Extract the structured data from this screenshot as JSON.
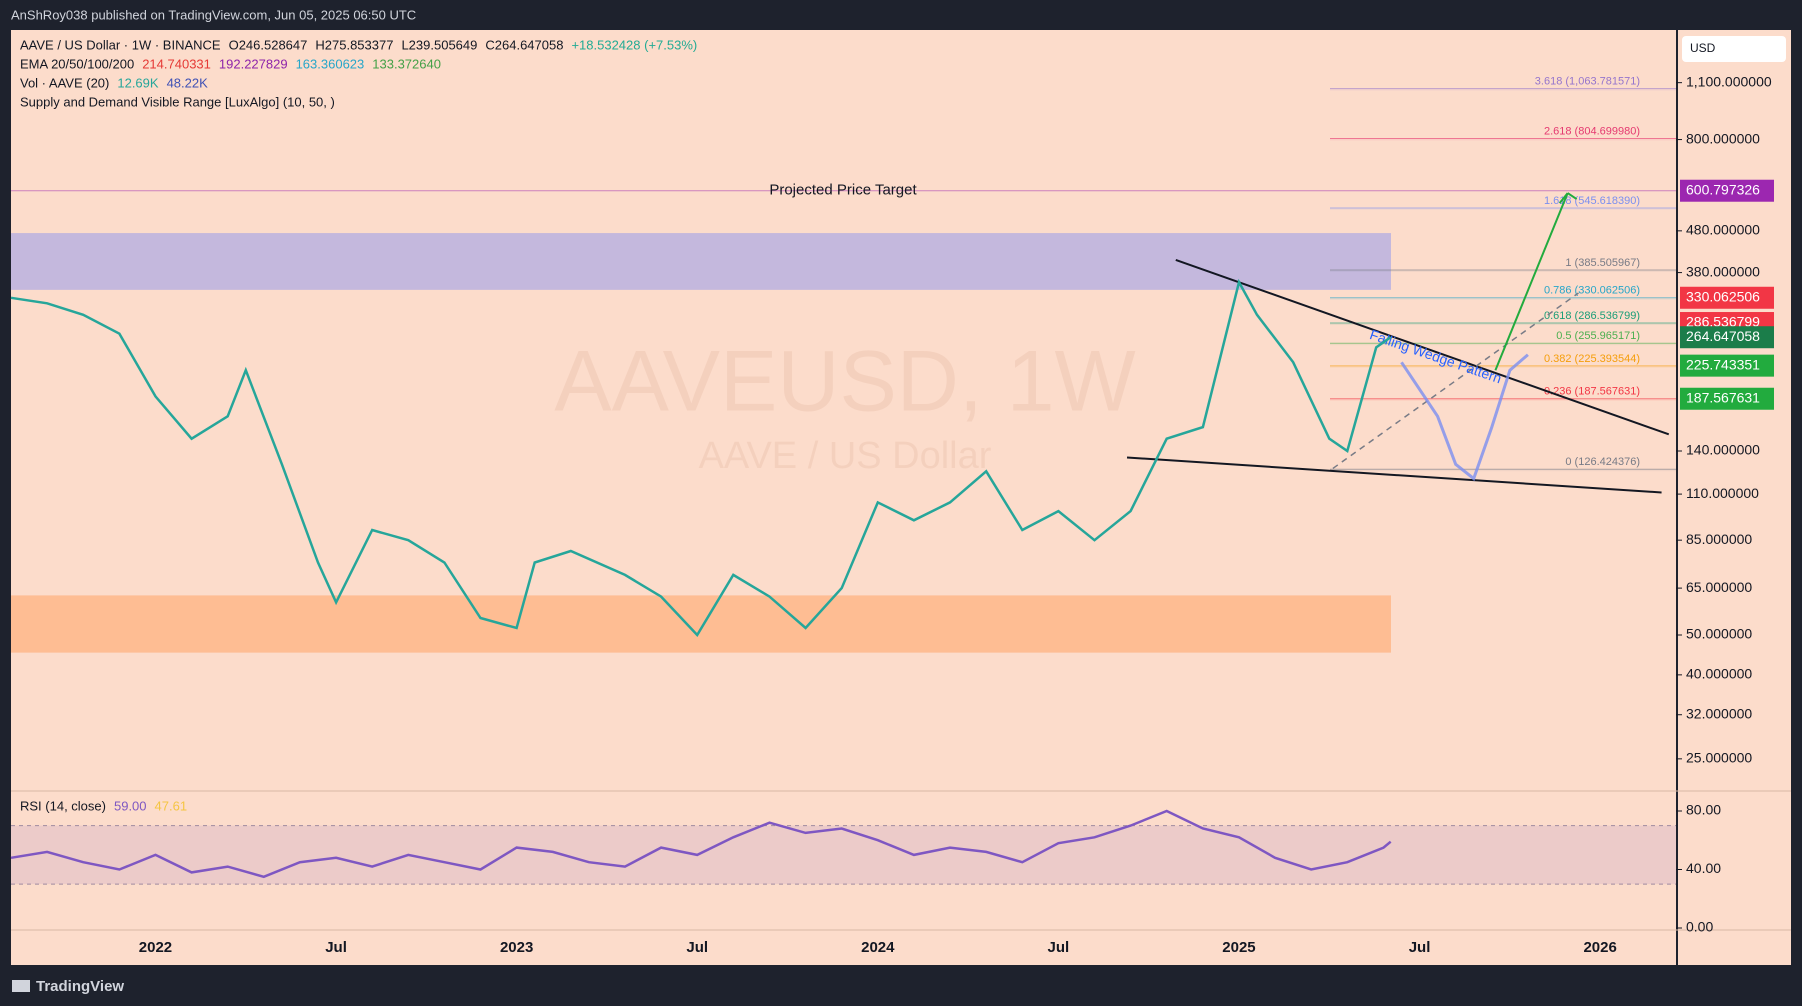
{
  "header": {
    "publisher": "AnShRoy038 published on TradingView.com, Jun 05, 2025 06:50 UTC",
    "currency": "USD",
    "brand": "TradingView"
  },
  "legend": {
    "symbol": "AAVE / US Dollar · 1W · BINANCE",
    "ohlc": [
      "O246.528647",
      "H275.853377",
      "L239.505649",
      "C264.647058",
      "+18.532428 (+7.53%)"
    ],
    "ema_label": "EMA 20/50/100/200",
    "ema_values": [
      {
        "text": "214.740331",
        "color": "#e53935"
      },
      {
        "text": "192.227829",
        "color": "#8e24aa"
      },
      {
        "text": "163.360623",
        "color": "#26a6c9"
      },
      {
        "text": "133.372640",
        "color": "#43a047"
      }
    ],
    "vol_label": "Vol · AAVE (20)",
    "vol_values": [
      {
        "text": "12.69K",
        "color": "#26a69a"
      },
      {
        "text": "48.22K",
        "color": "#3f51b5"
      }
    ],
    "indicator": "Supply and Demand Visible Range [LuxAlgo] (10, 50, )"
  },
  "chart_data": [
    {
      "type": "line",
      "title": "AAVEUSD, 1W",
      "subtitle": "AAVE / US Dollar",
      "log_scale": true,
      "x": [
        2021.6,
        2021.7,
        2021.8,
        2021.9,
        2022.0,
        2022.1,
        2022.2,
        2022.25,
        2022.35,
        2022.45,
        2022.5,
        2022.6,
        2022.7,
        2022.8,
        2022.9,
        2023.0,
        2023.05,
        2023.15,
        2023.3,
        2023.4,
        2023.5,
        2023.6,
        2023.7,
        2023.8,
        2023.9,
        2024.0,
        2024.1,
        2024.2,
        2024.3,
        2024.4,
        2024.5,
        2024.6,
        2024.7,
        2024.8,
        2024.9,
        2025.0,
        2025.05,
        2025.15,
        2025.25,
        2025.3,
        2025.38,
        2025.42
      ],
      "series": [
        {
          "color": "#26a69a",
          "values": [
            330,
            320,
            300,
            270,
            190,
            150,
            170,
            220,
            130,
            75,
            60,
            90,
            85,
            75,
            55,
            52,
            75,
            80,
            70,
            62,
            50,
            70,
            62,
            52,
            65,
            105,
            95,
            105,
            125,
            90,
            100,
            85,
            100,
            150,
            160,
            360,
            300,
            230,
            150,
            140,
            250,
            264.647058
          ]
        }
      ],
      "projection": {
        "color": "#7b8ff0",
        "x": [
          2025.45,
          2025.55,
          2025.6,
          2025.65,
          2025.7,
          2025.75,
          2025.8
        ],
        "values": [
          230,
          170,
          130,
          120,
          160,
          220,
          240
        ]
      },
      "xlim": [
        2021.6,
        2026.21
      ],
      "xticks": [
        {
          "value": 2022,
          "label": "2022"
        },
        {
          "value": 2022.5,
          "label": "Jul"
        },
        {
          "value": 2023,
          "label": "2023"
        },
        {
          "value": 2023.5,
          "label": "Jul"
        },
        {
          "value": 2024,
          "label": "2024"
        },
        {
          "value": 2024.5,
          "label": "Jul"
        },
        {
          "value": 2025,
          "label": "2025"
        },
        {
          "value": 2025.5,
          "label": "Jul"
        },
        {
          "value": 2026,
          "label": "2026"
        }
      ],
      "ylim": [
        21,
        1477
      ],
      "yticks": [
        {
          "value": 1100,
          "label": "1,100.000000"
        },
        {
          "value": 800,
          "label": "800.000000"
        },
        {
          "value": 480,
          "label": "480.000000"
        },
        {
          "value": 380,
          "label": "380.000000"
        },
        {
          "value": 140,
          "label": "140.000000"
        },
        {
          "value": 110,
          "label": "110.000000"
        },
        {
          "value": 85,
          "label": "85.000000"
        },
        {
          "value": 65,
          "label": "65.000000"
        },
        {
          "value": 50,
          "label": "50.000000"
        },
        {
          "value": 40,
          "label": "40.000000"
        },
        {
          "value": 32,
          "label": "32.000000"
        },
        {
          "value": 25,
          "label": "25.000000"
        }
      ],
      "price_badges": [
        {
          "value": 600.797326,
          "label": "600.797326",
          "color": "#9c27b0"
        },
        {
          "value": 330.062506,
          "label": "330.062506",
          "color": "#f23645"
        },
        {
          "value": 286.536799,
          "label": "286.536799",
          "color": "#f23645"
        },
        {
          "value": 264.647058,
          "label": "264.647058",
          "color": "#1b7d4a"
        },
        {
          "value": 225.743351,
          "label": "225.743351",
          "color": "#22ab3e"
        },
        {
          "value": 187.567631,
          "label": "187.567631",
          "color": "#22ab3e"
        }
      ],
      "fib_levels": [
        {
          "value": 1063.781571,
          "label": "3.618 (1,063.781571)",
          "color": "#9575cd"
        },
        {
          "value": 804.69998,
          "label": "2.618 (804.699980)",
          "color": "#e53970"
        },
        {
          "value": 545.61839,
          "label": "1.618 (545.618390)",
          "color": "#7b8ff0"
        },
        {
          "value": 385.505967,
          "label": "1 (385.505967)",
          "color": "#787b86"
        },
        {
          "value": 330.062506,
          "label": "0.786 (330.062506)",
          "color": "#26a6c9"
        },
        {
          "value": 286.536799,
          "label": "0.618 (286.536799)",
          "color": "#1b9e77"
        },
        {
          "value": 255.965171,
          "label": "0.5 (255.965171)",
          "color": "#4caf50"
        },
        {
          "value": 225.393544,
          "label": "0.382 (225.393544)",
          "color": "#f59e0b"
        },
        {
          "value": 187.567631,
          "label": "0.236 (187.567631)",
          "color": "#f23645"
        },
        {
          "value": 126.424376,
          "label": "0 (126.424376)",
          "color": "#787b86"
        }
      ],
      "zones": [
        {
          "range": [
            345,
            474
          ],
          "color": "#8c94f0"
        },
        {
          "range": [
            45.3,
            62.4
          ],
          "color": "#ff9d5c"
        }
      ],
      "wedge": [
        [
          [
            2024.825,
            408
          ],
          [
            2026.19,
            153.7
          ]
        ],
        [
          [
            2024.69,
            135
          ],
          [
            2026.17,
            111
          ]
        ]
      ],
      "dashed_path": [
        [
          2025.26,
          127
        ],
        [
          2025.94,
          339
        ]
      ],
      "arrow": [
        [
          2025.71,
          220
        ],
        [
          2025.91,
          593
        ]
      ],
      "annotations": [
        {
          "text": "Projected Price Target",
          "price": 600.797326
        },
        {
          "text": "Falling Wedge Pattern"
        }
      ]
    },
    {
      "type": "line",
      "title": "RSI (14, close)",
      "value_texts": [
        {
          "text": "59.00",
          "color": "#7e57c2"
        },
        {
          "text": "47.61",
          "color": "#f5c542"
        }
      ],
      "x": [
        2021.6,
        2021.7,
        2021.8,
        2021.9,
        2022.0,
        2022.1,
        2022.2,
        2022.3,
        2022.4,
        2022.5,
        2022.6,
        2022.7,
        2022.8,
        2022.9,
        2023.0,
        2023.1,
        2023.2,
        2023.3,
        2023.4,
        2023.5,
        2023.6,
        2023.7,
        2023.8,
        2023.9,
        2024.0,
        2024.1,
        2024.2,
        2024.3,
        2024.4,
        2024.5,
        2024.6,
        2024.7,
        2024.8,
        2024.9,
        2025.0,
        2025.1,
        2025.2,
        2025.3,
        2025.4,
        2025.42
      ],
      "series": [
        {
          "color": "#7e57c2",
          "values": [
            48,
            52,
            45,
            40,
            50,
            38,
            42,
            35,
            45,
            48,
            42,
            50,
            45,
            40,
            55,
            52,
            45,
            42,
            55,
            50,
            62,
            72,
            65,
            68,
            60,
            50,
            55,
            52,
            45,
            58,
            62,
            70,
            80,
            68,
            62,
            48,
            40,
            45,
            55,
            59
          ]
        }
      ],
      "band": [
        30,
        70
      ],
      "ylim": [
        -25.3,
        92.3
      ],
      "yticks": [
        {
          "value": 80,
          "label": "80.00"
        },
        {
          "value": 40,
          "label": "40.00"
        },
        {
          "value": 0,
          "label": "0.00"
        }
      ],
      "xlim": [
        2021.6,
        2026.21
      ]
    }
  ]
}
